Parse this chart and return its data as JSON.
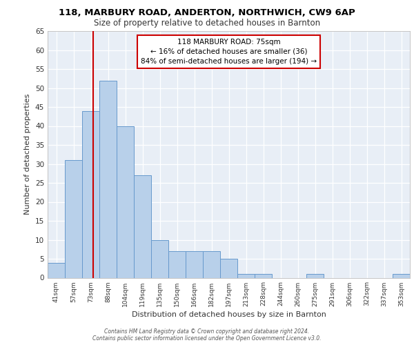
{
  "title_line1": "118, MARBURY ROAD, ANDERTON, NORTHWICH, CW9 6AP",
  "title_line2": "Size of property relative to detached houses in Barnton",
  "xlabel": "Distribution of detached houses by size in Barnton",
  "ylabel": "Number of detached properties",
  "bar_labels": [
    "41sqm",
    "57sqm",
    "73sqm",
    "88sqm",
    "104sqm",
    "119sqm",
    "135sqm",
    "150sqm",
    "166sqm",
    "182sqm",
    "197sqm",
    "213sqm",
    "228sqm",
    "244sqm",
    "260sqm",
    "275sqm",
    "291sqm",
    "306sqm",
    "322sqm",
    "337sqm",
    "353sqm"
  ],
  "bar_values": [
    4,
    31,
    44,
    52,
    40,
    27,
    10,
    7,
    7,
    7,
    5,
    1,
    1,
    0,
    0,
    1,
    0,
    0,
    0,
    0,
    1
  ],
  "bar_color": "#b8d0ea",
  "bar_edge_color": "#6699cc",
  "annotation_text": "118 MARBURY ROAD: 75sqm\n← 16% of detached houses are smaller (36)\n84% of semi-detached houses are larger (194) →",
  "annotation_box_color": "#ffffff",
  "annotation_edge_color": "#cc0000",
  "red_line_color": "#cc0000",
  "ylim": [
    0,
    65
  ],
  "yticks": [
    0,
    5,
    10,
    15,
    20,
    25,
    30,
    35,
    40,
    45,
    50,
    55,
    60,
    65
  ],
  "bg_color": "#e8eef6",
  "grid_color": "#ffffff",
  "footer_line1": "Contains HM Land Registry data © Crown copyright and database right 2024.",
  "footer_line2": "Contains public sector information licensed under the Open Government Licence v3.0."
}
